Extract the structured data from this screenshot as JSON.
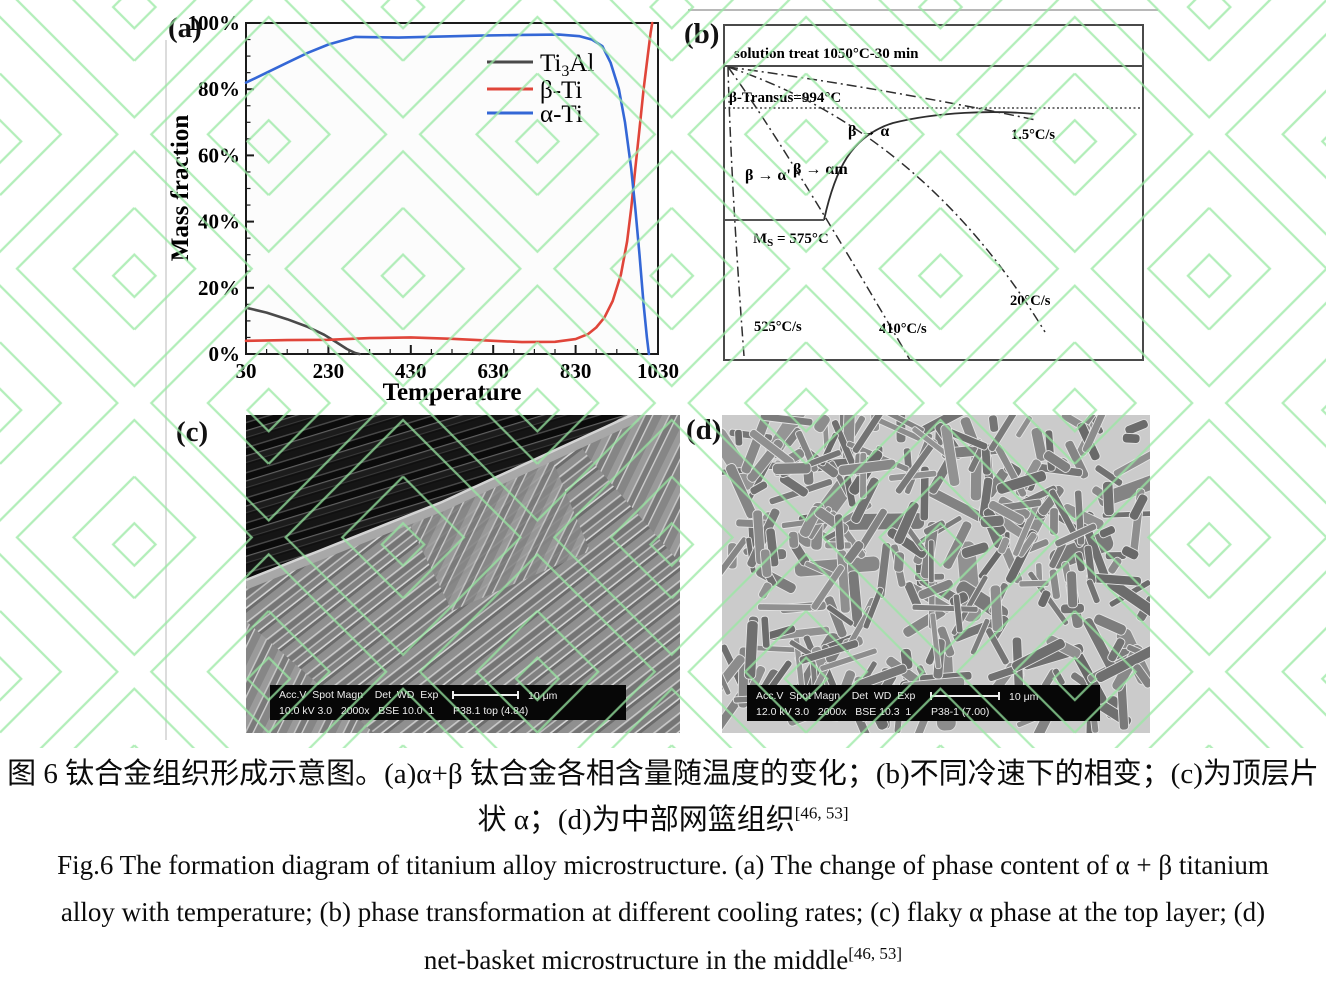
{
  "chart_data": {
    "type": "line",
    "title": "",
    "xlabel": "Temperature",
    "ylabel": "Mass fraction",
    "xlim": [
      30,
      1030
    ],
    "ylim": [
      0,
      100
    ],
    "x_ticks": [
      30,
      230,
      430,
      630,
      830,
      1030
    ],
    "x_minor_step": 50,
    "y_tick_values": [
      0,
      20,
      40,
      60,
      80,
      100
    ],
    "y_ticks": [
      "0%",
      "20%",
      "40%",
      "60%",
      "80%",
      "100%"
    ],
    "y_minor_step": 5,
    "grid": false,
    "legend_position": "upper center-right, no frame",
    "series": [
      {
        "name": "Ti3Al",
        "label": "Ti3Al",
        "color": "#4a4a4a",
        "points": [
          [
            30,
            14
          ],
          [
            80,
            12.5
          ],
          [
            130,
            10.5
          ],
          [
            180,
            8.2
          ],
          [
            220,
            5.8
          ],
          [
            250,
            3.5
          ],
          [
            275,
            1.5
          ],
          [
            295,
            0.3
          ],
          [
            305,
            0
          ]
        ]
      },
      {
        "name": "beta-Ti",
        "label": "β-Ti",
        "color": "#e0453a",
        "points": [
          [
            30,
            4
          ],
          [
            130,
            4.2
          ],
          [
            230,
            4.3
          ],
          [
            330,
            4.8
          ],
          [
            430,
            5
          ],
          [
            530,
            4.6
          ],
          [
            630,
            4
          ],
          [
            700,
            3.6
          ],
          [
            780,
            3.7
          ],
          [
            830,
            4.5
          ],
          [
            860,
            6
          ],
          [
            880,
            8
          ],
          [
            900,
            11
          ],
          [
            920,
            16
          ],
          [
            940,
            24
          ],
          [
            955,
            34
          ],
          [
            965,
            44
          ],
          [
            975,
            56
          ],
          [
            985,
            68
          ],
          [
            995,
            80
          ],
          [
            1005,
            90
          ],
          [
            1012,
            97
          ],
          [
            1016,
            100
          ]
        ]
      },
      {
        "name": "alpha-Ti",
        "label": "α-Ti",
        "color": "#3467d6",
        "points": [
          [
            30,
            82
          ],
          [
            80,
            85
          ],
          [
            130,
            88
          ],
          [
            180,
            91
          ],
          [
            230,
            93.5
          ],
          [
            295,
            95.8
          ],
          [
            400,
            95.6
          ],
          [
            500,
            95.9
          ],
          [
            600,
            96.2
          ],
          [
            700,
            96.4
          ],
          [
            790,
            96.5
          ],
          [
            840,
            96
          ],
          [
            870,
            95
          ],
          [
            895,
            93
          ],
          [
            915,
            88
          ],
          [
            935,
            80
          ],
          [
            950,
            70
          ],
          [
            965,
            56
          ],
          [
            975,
            44
          ],
          [
            985,
            30
          ],
          [
            995,
            15
          ],
          [
            1003,
            5
          ],
          [
            1008,
            0
          ]
        ]
      }
    ]
  },
  "figure": {
    "panel_a": {
      "label": "(a)",
      "legend": {
        "ti3al_pre": "Ti",
        "ti3al_sub": "3",
        "ti3al_post": "Al",
        "beta": "β-Ti",
        "alpha": "α-Ti"
      }
    },
    "panel_b": {
      "label": "(b)",
      "solution_treat": "solution treat 1050°C-30 min",
      "beta_transus": "β-Transus=994°C",
      "ms_pre": "M",
      "ms_sub": "S",
      "ms_post": " = 575°C",
      "beta_to_alpha": "β → α",
      "beta_to_alpha_prime": "β → α'",
      "beta_to_alpha_m": "β → αm",
      "rate_1_5": "1.5°C/s",
      "rate_20": "20°C/s",
      "rate_410": "410°C/s",
      "rate_525": "525°C/s"
    },
    "panel_c": {
      "label": "(c)",
      "bar_header": "Acc.V  Spot Magn    Det  WD  Exp",
      "bar_values": "10.0 kV 3.0   2000x   BSE 10.0  1",
      "sample": "P38.1 top (4.84)",
      "scale_label": "10 μm"
    },
    "panel_d": {
      "label": "(d)",
      "bar_header": "Acc.V  Spot Magn    Det  WD  Exp",
      "bar_values": "12.0 kV 3.0   2000x   BSE 10.3  1",
      "sample": "P38-1 (7.00)",
      "scale_label": "10 μm"
    }
  },
  "caption": {
    "cn_line1": "图 6 钛合金组织形成示意图。(a)α+β 钛合金各相含量随温度的变化；(b)不同冷速下的相变；(c)为顶层片",
    "cn_line2": "状 α；(d)为中部网篮组织",
    "cn_ref": "[46, 53]",
    "en_line1": "Fig.6 The formation diagram of titanium alloy microstructure. (a) The change of phase content of α + β titanium",
    "en_line2": "alloy with temperature; (b) phase transformation at different cooling rates; (c) flaky α phase at the top layer; (d)",
    "en_line3": "net-basket microstructure in the middle",
    "en_ref": "[46, 53]"
  },
  "colors": {
    "watermark": "#98e8a2",
    "ti3al": "#4a4a4a",
    "beta_ti": "#e0453a",
    "alpha_ti": "#3467d6",
    "sem_bar_bg": "#070707"
  }
}
